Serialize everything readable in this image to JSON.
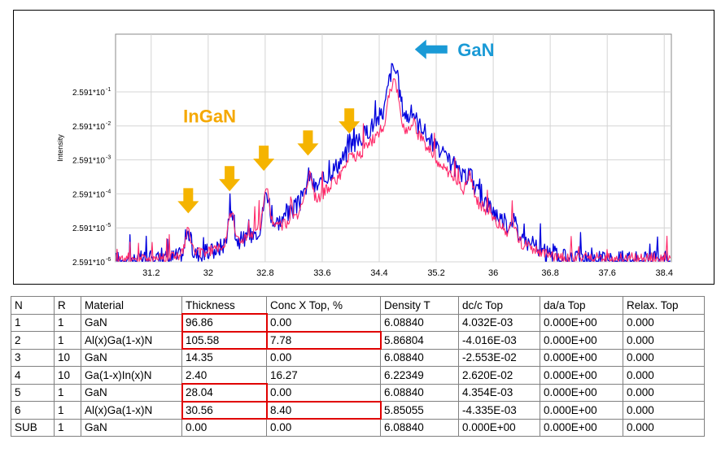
{
  "chart_data": {
    "type": "line",
    "ylabel": "Intensity",
    "xlim": [
      30.7,
      38.5
    ],
    "ylim_log10": [
      -6,
      0.7
    ],
    "y_scale": "log",
    "grid": true,
    "x_ticks": [
      "31.2",
      "32",
      "32.8",
      "33.6",
      "34.4",
      "35.2",
      "36",
      "36.8",
      "37.6",
      "38.4"
    ],
    "x_tick_values": [
      31.2,
      32,
      32.8,
      33.6,
      34.4,
      35.2,
      36,
      36.8,
      37.6,
      38.4
    ],
    "y_ticks": [
      "2.591*10",
      "2.591*10",
      "2.591*10",
      "2.591*10",
      "2.591*10",
      "2.591*10"
    ],
    "y_tick_exponents": [
      "-1",
      "-2",
      "-3",
      "-4",
      "-5",
      "-6"
    ],
    "y_tick_log10": [
      -1,
      -2,
      -3,
      -4,
      -5,
      -6
    ],
    "series": [
      {
        "color": "#0000dd",
        "peaks": [
          {
            "x": 31.72,
            "log10y": -5.3
          },
          {
            "x": 32.32,
            "log10y": -4.65
          },
          {
            "x": 32.82,
            "log10y": -4.05
          },
          {
            "x": 33.42,
            "log10y": -3.6
          },
          {
            "x": 34.0,
            "log10y": -3.05
          },
          {
            "x": 34.6,
            "log10y": -0.35
          },
          {
            "x": 34.88,
            "log10y": -1.9
          },
          {
            "x": 35.0,
            "log10y": -2.5
          },
          {
            "x": 35.67,
            "log10y": -3.6
          },
          {
            "x": 36.28,
            "log10y": -5.0
          }
        ]
      },
      {
        "color": "#ff2a6a",
        "peaks": [
          {
            "x": 31.72,
            "log10y": -5.25
          },
          {
            "x": 32.32,
            "log10y": -4.6
          },
          {
            "x": 32.82,
            "log10y": -4.0
          },
          {
            "x": 33.42,
            "log10y": -3.6
          },
          {
            "x": 34.0,
            "log10y": -3.0
          },
          {
            "x": 34.6,
            "log10y": -0.8
          },
          {
            "x": 34.88,
            "log10y": -2.0
          },
          {
            "x": 35.0,
            "log10y": -2.6
          },
          {
            "x": 35.67,
            "log10y": -3.55
          },
          {
            "x": 36.28,
            "log10y": -5.05
          }
        ]
      }
    ],
    "annotations": [
      {
        "text": "GaN",
        "color": "#1a9ad6",
        "x": 35.5,
        "log10y": 0.25,
        "arrow": "left",
        "arrow_x": 34.9
      },
      {
        "text": "InGaN",
        "color": "#f5a800",
        "x": 31.65,
        "log10y": -1.7,
        "arrow": "none"
      },
      {
        "text": "",
        "color": "#f5b400",
        "x": 31.72,
        "log10y": -4.55,
        "arrow": "down"
      },
      {
        "text": "",
        "color": "#f5b400",
        "x": 32.3,
        "log10y": -3.9,
        "arrow": "down"
      },
      {
        "text": "",
        "color": "#f5b400",
        "x": 32.78,
        "log10y": -3.3,
        "arrow": "down"
      },
      {
        "text": "",
        "color": "#f5b400",
        "x": 33.4,
        "log10y": -2.85,
        "arrow": "down"
      },
      {
        "text": "",
        "color": "#f5b400",
        "x": 33.98,
        "log10y": -2.2,
        "arrow": "down"
      }
    ]
  },
  "table": {
    "headers": [
      "N",
      "R",
      "Material",
      "Thickness",
      "Conc X Top, %",
      "Density T",
      "dc/c Top",
      "da/a Top",
      "Relax. Top"
    ],
    "rows": [
      [
        "1",
        "1",
        "GaN",
        "96.86",
        "0.00",
        "6.08840",
        "4.032E-03",
        "0.000E+00",
        "0.000"
      ],
      [
        "2",
        "1",
        "Al(x)Ga(1-x)N",
        "105.58",
        "7.78",
        "5.86804",
        "-4.016E-03",
        "0.000E+00",
        "0.000"
      ],
      [
        "3",
        "10",
        "GaN",
        "14.35",
        "0.00",
        "6.08840",
        "-2.553E-02",
        "0.000E+00",
        "0.000"
      ],
      [
        "4",
        "10",
        "Ga(1-x)In(x)N",
        "2.40",
        "16.27",
        "6.22349",
        "2.620E-02",
        "0.000E+00",
        "0.000"
      ],
      [
        "5",
        "1",
        "GaN",
        "28.04",
        "0.00",
        "6.08840",
        "4.354E-03",
        "0.000E+00",
        "0.000"
      ],
      [
        "6",
        "1",
        "Al(x)Ga(1-x)N",
        "30.56",
        "8.40",
        "5.85055",
        "-4.335E-03",
        "0.000E+00",
        "0.000"
      ],
      [
        "SUB",
        "1",
        "GaN",
        "0.00",
        "0.00",
        "6.08840",
        "0.000E+00",
        "0.000E+00",
        "0.000"
      ]
    ],
    "highlight_color": "#e00000",
    "highlighted_cells": [
      [
        0,
        3
      ],
      [
        1,
        3
      ],
      [
        1,
        4
      ],
      [
        4,
        3
      ],
      [
        5,
        3
      ],
      [
        5,
        4
      ]
    ]
  }
}
